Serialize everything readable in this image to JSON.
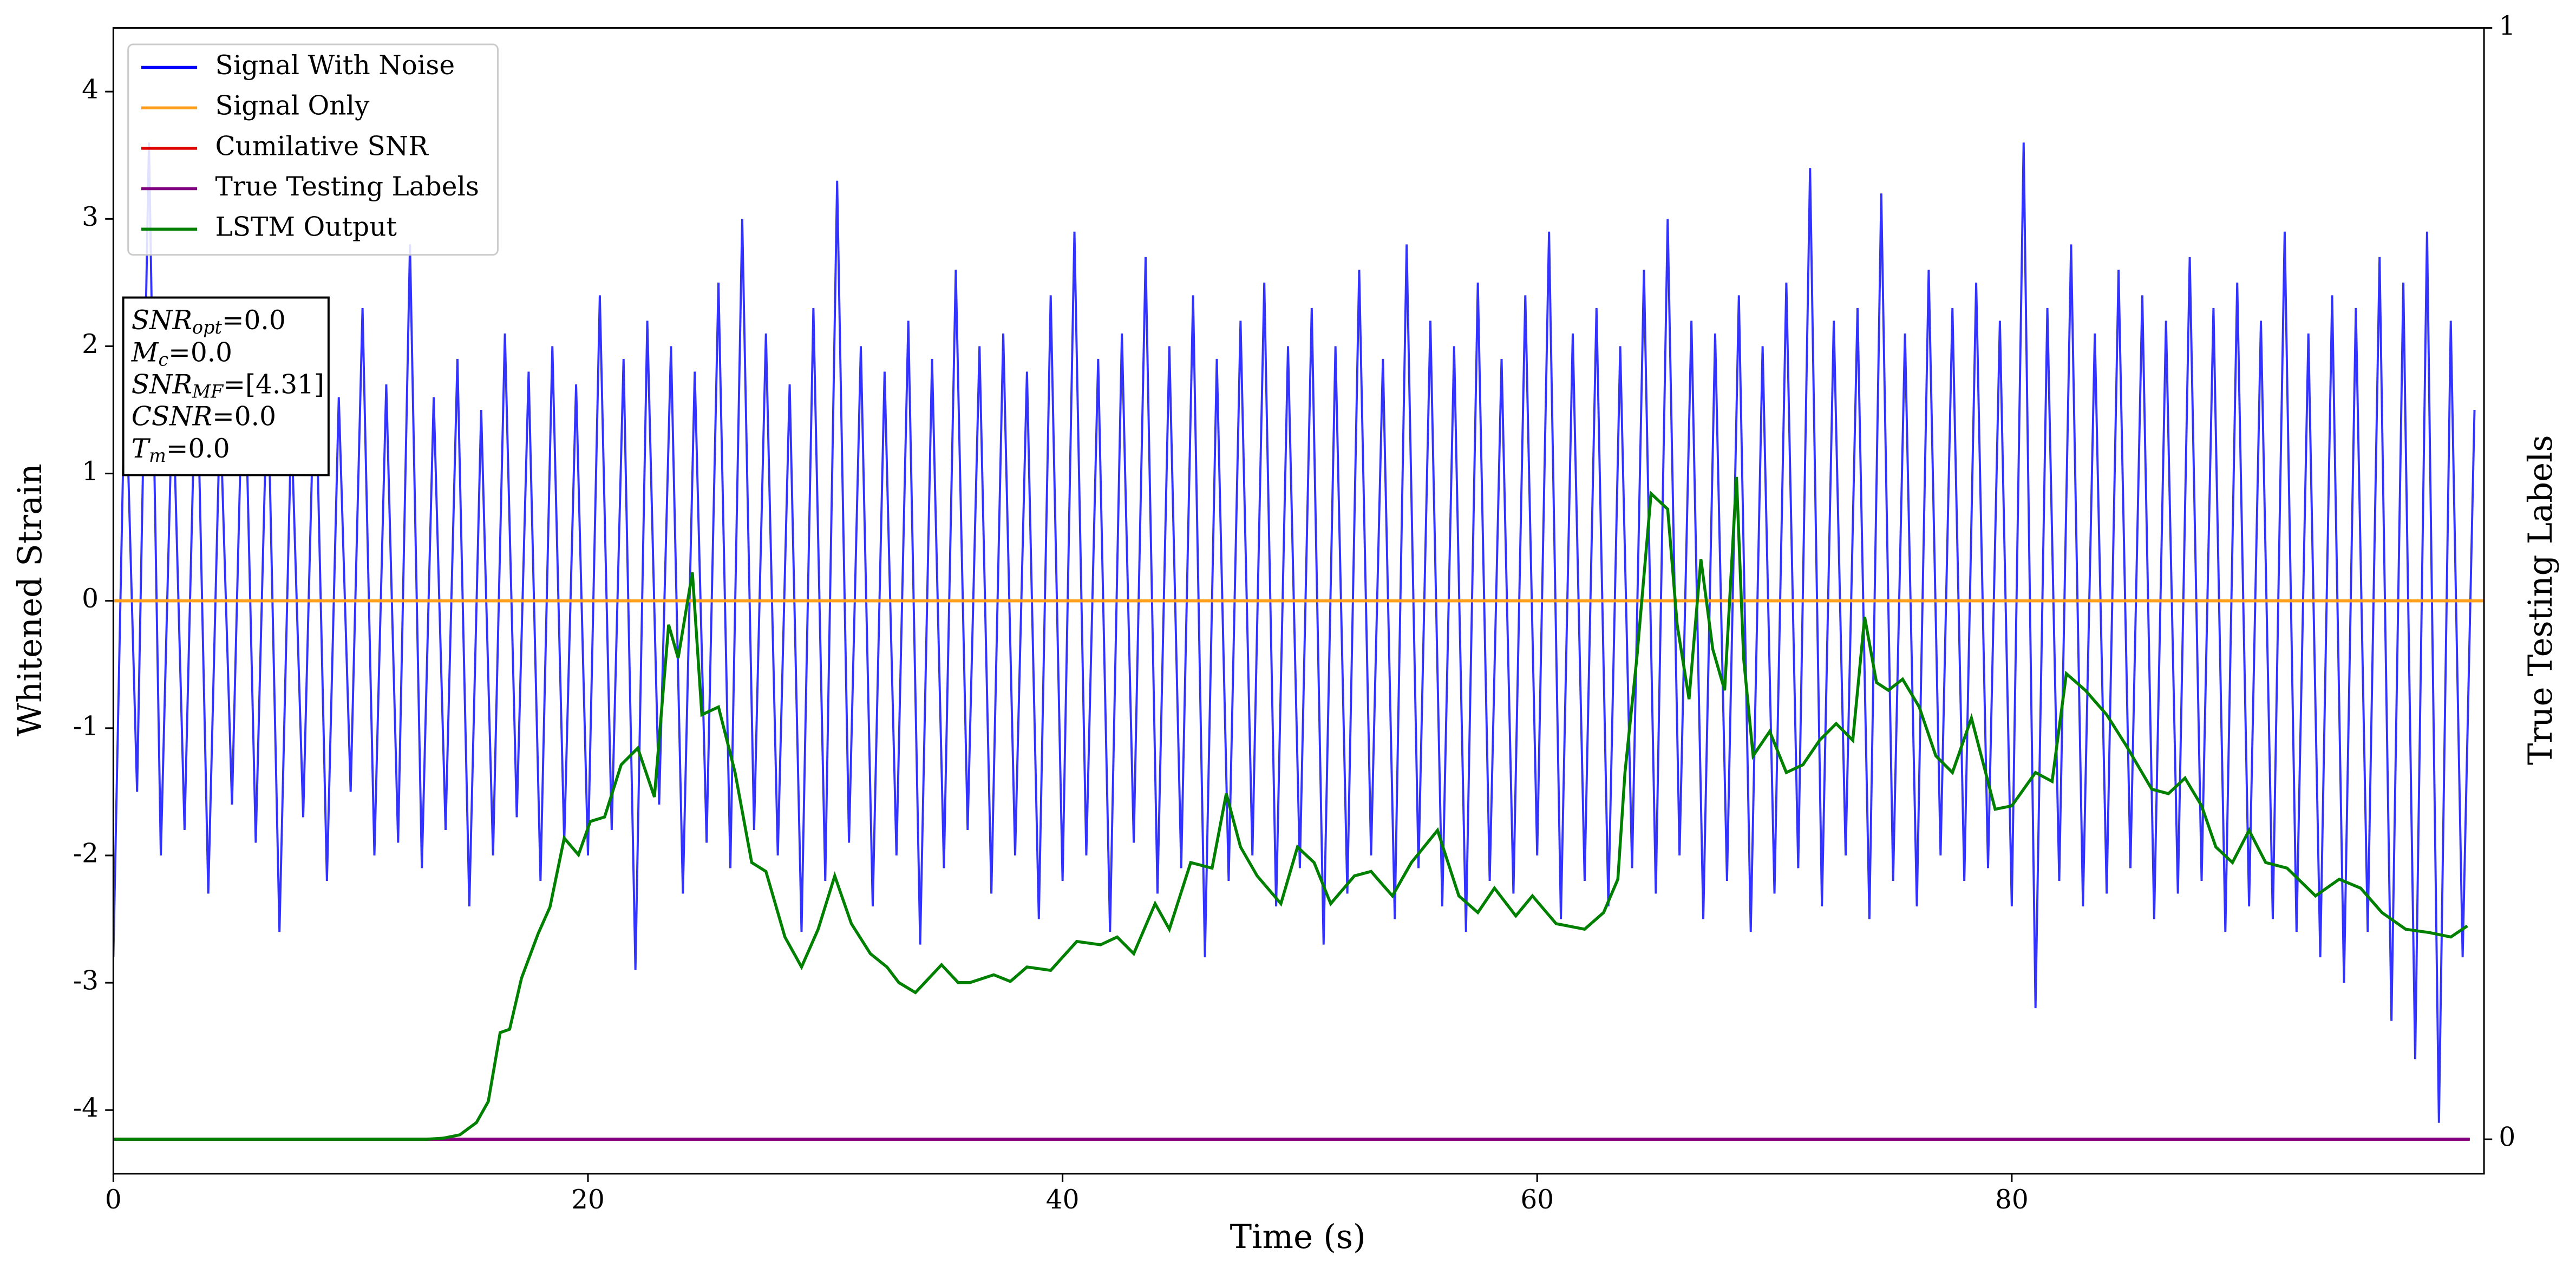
{
  "chart_data": {
    "type": "line",
    "xlabel": "Time (s)",
    "ylabel": "Whitened Strain",
    "y2label": "True Testing Labels",
    "xlim": [
      0,
      99.9
    ],
    "xticks": [
      0,
      20,
      40,
      60,
      80
    ],
    "ylim": [
      -4.5,
      4.5
    ],
    "yticks": [
      -4,
      -3,
      -2,
      -1,
      0,
      1,
      2,
      3,
      4
    ],
    "y2lim": [
      -0.031,
      1.0
    ],
    "y2ticks": [
      0,
      1
    ],
    "legend": "upper left",
    "annotations": [
      {
        "name": "SNR",
        "sub": "opt",
        "value": "=0.0"
      },
      {
        "name": "M",
        "sub": "c",
        "value": "=0.0"
      },
      {
        "name": "SNR",
        "sub": "MF",
        "value": "=[4.31]"
      },
      {
        "name": "CSNR",
        "sub": "",
        "value": "=0.0"
      },
      {
        "name": "T",
        "sub": "m",
        "value": "=0.0"
      }
    ],
    "series": [
      {
        "name": "Signal With Noise",
        "color": "#0000ff",
        "x": [
          0,
          0.5,
          1,
          1.5,
          2,
          2.5,
          3,
          3.5,
          4,
          4.5,
          5,
          5.5,
          6,
          6.5,
          7,
          7.5,
          8,
          8.5,
          9,
          9.5,
          10,
          10.5,
          11,
          11.5,
          12,
          12.5,
          13,
          13.5,
          14,
          14.5,
          15,
          15.5,
          16,
          16.5,
          17,
          17.5,
          18,
          18.5,
          19,
          19.5,
          20,
          20.5,
          21,
          21.5,
          22,
          22.5,
          23,
          23.5,
          24,
          24.5,
          25,
          25.5,
          26,
          26.5,
          27,
          27.5,
          28,
          28.5,
          29,
          29.5,
          30,
          30.5,
          31,
          31.5,
          32,
          32.5,
          33,
          33.5,
          34,
          34.5,
          35,
          35.5,
          36,
          36.5,
          37,
          37.5,
          38,
          38.5,
          39,
          39.5,
          40,
          40.5,
          41,
          41.5,
          42,
          42.5,
          43,
          43.5,
          44,
          44.5,
          45,
          45.5,
          46,
          46.5,
          47,
          47.5,
          48,
          48.5,
          49,
          49.5,
          50,
          50.5,
          51,
          51.5,
          52,
          52.5,
          53,
          53.5,
          54,
          54.5,
          55,
          55.5,
          56,
          56.5,
          57,
          57.5,
          58,
          58.5,
          59,
          59.5,
          60,
          60.5,
          61,
          61.5,
          62,
          62.5,
          63,
          63.5,
          64,
          64.5,
          65,
          65.5,
          66,
          66.5,
          67,
          67.5,
          68,
          68.5,
          69,
          69.5,
          70,
          70.5,
          71,
          71.5,
          72,
          72.5,
          73,
          73.5,
          74,
          74.5,
          75,
          75.5,
          76,
          76.5,
          77,
          77.5,
          78,
          78.5,
          79,
          79.5,
          80,
          80.5,
          81,
          81.5,
          82,
          82.5,
          83,
          83.5,
          84,
          84.5,
          85,
          85.5,
          86,
          86.5,
          87,
          87.5,
          88,
          88.5,
          89,
          89.5,
          90,
          90.5,
          91,
          91.5,
          92,
          92.5,
          93,
          93.5,
          94,
          94.5,
          95,
          95.5,
          96,
          96.5,
          97,
          97.5,
          98,
          98.5,
          99,
          99.5
        ],
        "values": [
          -2.8,
          1.9,
          -1.5,
          3.6,
          -2.0,
          1.7,
          -1.8,
          2.1,
          -2.3,
          1.5,
          -1.6,
          2.2,
          -1.9,
          1.8,
          -2.6,
          1.4,
          -1.7,
          2.0,
          -2.2,
          1.6,
          -1.5,
          2.3,
          -2.0,
          1.7,
          -1.9,
          2.8,
          -2.1,
          1.6,
          -1.8,
          1.9,
          -2.4,
          1.5,
          -2.0,
          2.1,
          -1.7,
          1.8,
          -2.2,
          2.0,
          -1.9,
          1.7,
          -2.0,
          2.4,
          -1.8,
          1.9,
          -2.9,
          2.2,
          -1.6,
          2.0,
          -2.3,
          1.8,
          -1.9,
          2.5,
          -2.1,
          3.0,
          -1.8,
          2.1,
          -2.0,
          1.7,
          -2.6,
          2.3,
          -2.2,
          3.3,
          -1.9,
          2.0,
          -2.4,
          1.8,
          -2.0,
          2.2,
          -2.7,
          1.9,
          -2.1,
          2.6,
          -1.8,
          2.0,
          -2.3,
          2.1,
          -2.0,
          1.8,
          -2.5,
          2.4,
          -2.2,
          2.9,
          -2.0,
          1.9,
          -2.6,
          2.1,
          -1.9,
          2.7,
          -2.3,
          2.0,
          -2.1,
          2.4,
          -2.8,
          1.9,
          -2.2,
          2.2,
          -2.0,
          2.5,
          -2.4,
          2.0,
          -2.1,
          2.3,
          -2.7,
          2.0,
          -2.3,
          2.6,
          -2.0,
          1.9,
          -2.5,
          2.8,
          -2.1,
          2.2,
          -2.4,
          2.0,
          -2.6,
          2.5,
          -2.2,
          1.9,
          -2.3,
          2.4,
          -2.0,
          2.9,
          -2.5,
          2.1,
          -2.2,
          2.3,
          -2.4,
          2.0,
          -2.1,
          2.6,
          -2.3,
          3.0,
          -2.0,
          2.2,
          -2.5,
          2.1,
          -2.2,
          2.4,
          -2.6,
          2.0,
          -2.3,
          2.5,
          -2.1,
          3.4,
          -2.4,
          2.2,
          -2.0,
          2.3,
          -2.5,
          3.2,
          -2.2,
          2.1,
          -2.4,
          2.6,
          -2.0,
          2.3,
          -2.2,
          2.5,
          -2.1,
          2.2,
          -2.4,
          3.6,
          -3.2,
          2.3,
          -2.2,
          2.8,
          -2.4,
          2.1,
          -2.3,
          2.6,
          -2.1,
          2.4,
          -2.5,
          2.2,
          -2.3,
          2.7,
          -2.2,
          2.3,
          -2.6,
          2.5,
          -2.4,
          2.2,
          -2.5,
          2.9,
          -2.6,
          2.1,
          -2.8,
          2.4,
          -3.0,
          2.3,
          -2.6,
          2.7,
          -3.3,
          2.5,
          -3.6,
          2.9,
          -4.1,
          2.2,
          -2.8,
          1.5
        ]
      },
      {
        "name": "Signal Only",
        "color": "#ff9f1c",
        "x": [
          0,
          99.9
        ],
        "values": [
          0,
          0
        ]
      },
      {
        "name": "Cumilative SNR",
        "color": "#e00000",
        "axis": "y2",
        "x": [
          0,
          99.3
        ],
        "values": [
          0,
          0
        ]
      },
      {
        "name": "True Testing Labels",
        "color": "#800080",
        "axis": "y2",
        "x": [
          0,
          99.3
        ],
        "values": [
          0,
          0
        ]
      },
      {
        "name": "LSTM Output",
        "color": "#008000",
        "axis": "y2",
        "x": [
          0,
          13.2,
          13.9,
          14.6,
          15.3,
          15.8,
          16.3,
          16.7,
          17.2,
          17.9,
          18.4,
          19.0,
          19.6,
          20.1,
          20.7,
          21.4,
          22.1,
          22.8,
          23.4,
          23.8,
          24.4,
          24.8,
          25.5,
          26.2,
          26.9,
          27.5,
          28.3,
          29.0,
          29.7,
          30.4,
          31.1,
          31.9,
          32.6,
          33.1,
          33.8,
          34.9,
          35.6,
          36.1,
          37.1,
          37.8,
          38.5,
          39.5,
          40.6,
          41.6,
          42.3,
          43.0,
          43.9,
          44.5,
          45.4,
          46.3,
          46.9,
          47.5,
          48.2,
          49.2,
          49.9,
          50.6,
          51.3,
          52.3,
          53.0,
          53.9,
          54.7,
          55.8,
          56.7,
          57.5,
          58.2,
          59.1,
          59.8,
          60.8,
          62.0,
          62.8,
          63.4,
          63.7,
          64.2,
          64.8,
          65.5,
          65.9,
          66.4,
          66.9,
          67.4,
          67.9,
          68.4,
          68.7,
          69.1,
          69.8,
          70.5,
          71.2,
          71.9,
          72.6,
          73.3,
          73.8,
          74.3,
          74.8,
          75.4,
          76.1,
          76.8,
          77.5,
          78.3,
          79.3,
          80.0,
          81.0,
          81.7,
          82.3,
          83.1,
          84.0,
          84.8,
          85.9,
          86.6,
          87.3,
          88.0,
          88.6,
          89.3,
          90.0,
          90.7,
          91.6,
          92.8,
          93.8,
          94.7,
          95.6,
          96.6,
          97.6,
          98.5,
          99.2
        ],
        "values": [
          0,
          0,
          0.001,
          0.004,
          0.015,
          0.034,
          0.096,
          0.099,
          0.145,
          0.185,
          0.209,
          0.271,
          0.256,
          0.286,
          0.29,
          0.337,
          0.352,
          0.308,
          0.463,
          0.433,
          0.51,
          0.382,
          0.389,
          0.33,
          0.249,
          0.241,
          0.182,
          0.155,
          0.189,
          0.237,
          0.194,
          0.167,
          0.155,
          0.141,
          0.132,
          0.157,
          0.141,
          0.141,
          0.148,
          0.142,
          0.155,
          0.152,
          0.178,
          0.175,
          0.182,
          0.167,
          0.212,
          0.189,
          0.249,
          0.244,
          0.311,
          0.263,
          0.237,
          0.212,
          0.263,
          0.249,
          0.212,
          0.237,
          0.241,
          0.219,
          0.249,
          0.278,
          0.219,
          0.204,
          0.226,
          0.201,
          0.219,
          0.194,
          0.189,
          0.204,
          0.234,
          0.33,
          0.433,
          0.581,
          0.567,
          0.463,
          0.396,
          0.522,
          0.441,
          0.404,
          0.596,
          0.433,
          0.345,
          0.367,
          0.33,
          0.337,
          0.359,
          0.374,
          0.359,
          0.47,
          0.411,
          0.404,
          0.414,
          0.389,
          0.345,
          0.33,
          0.379,
          0.297,
          0.3,
          0.33,
          0.322,
          0.419,
          0.404,
          0.382,
          0.355,
          0.315,
          0.311,
          0.325,
          0.3,
          0.263,
          0.249,
          0.278,
          0.249,
          0.244,
          0.219,
          0.234,
          0.226,
          0.204,
          0.189,
          0.186,
          0.182,
          0.192
        ]
      }
    ]
  }
}
